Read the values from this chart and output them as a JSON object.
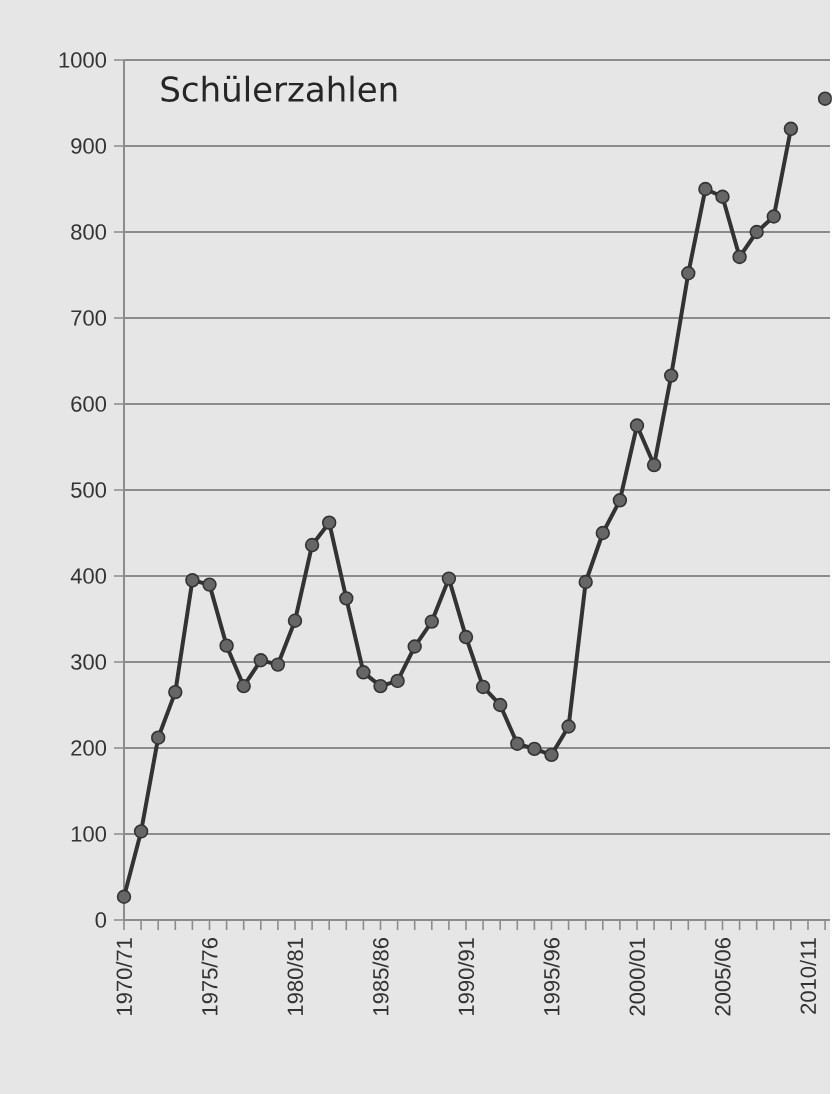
{
  "chart_data": {
    "type": "line",
    "title": "Schülerzahlen",
    "categories": [
      "1970/71",
      null,
      null,
      null,
      null,
      "1975/76",
      null,
      null,
      null,
      null,
      "1980/81",
      null,
      null,
      null,
      null,
      "1985/86",
      null,
      null,
      null,
      null,
      "1990/91",
      null,
      null,
      null,
      null,
      "1995/96",
      null,
      null,
      null,
      null,
      "2000/01",
      null,
      null,
      null,
      null,
      "2005/06",
      null,
      null,
      null,
      null,
      "2010/11",
      null
    ],
    "values": [
      27,
      103,
      212,
      265,
      395,
      390,
      319,
      272,
      302,
      297,
      348,
      436,
      462,
      374,
      288,
      272,
      278,
      318,
      347,
      397,
      329,
      271,
      250,
      205,
      199,
      192,
      225,
      393,
      450,
      488,
      575,
      529,
      633,
      752,
      850,
      841,
      771,
      800,
      818,
      920,
      null,
      955
    ],
    "color": "#333333",
    "marker": "circle",
    "ylim": [
      0,
      1000
    ],
    "yticks": [
      0,
      100,
      200,
      300,
      400,
      500,
      600,
      700,
      800,
      900,
      1000
    ],
    "grid": "y"
  }
}
